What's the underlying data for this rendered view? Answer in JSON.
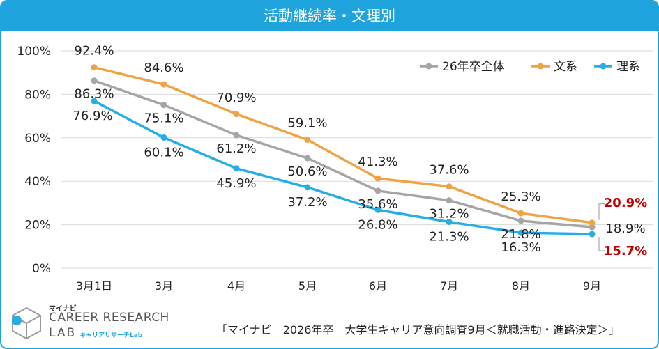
{
  "chart_data": {
    "type": "line",
    "title": "活動継続率・文理別",
    "categories": [
      "3月1日",
      "3月",
      "4月",
      "5月",
      "6月",
      "7月",
      "8月",
      "9月"
    ],
    "ylim": [
      0,
      100
    ],
    "yticks": [
      "0%",
      "20%",
      "40%",
      "60%",
      "80%",
      "100%"
    ],
    "legend_position": "top-right",
    "series": [
      {
        "name": "26年卒全体",
        "color": "#a5a5a5",
        "values": [
          86.3,
          75.1,
          61.2,
          50.6,
          35.6,
          31.2,
          21.8,
          18.9
        ],
        "labels": [
          "86.3%",
          "75.1%",
          "61.2%",
          "50.6%",
          "35.6%",
          "31.2%",
          "21.8%",
          "18.9%"
        ]
      },
      {
        "name": "文系",
        "color": "#eea444",
        "values": [
          92.4,
          84.6,
          70.9,
          59.1,
          41.3,
          37.6,
          25.3,
          20.9
        ],
        "labels": [
          "92.4%",
          "84.6%",
          "70.9%",
          "59.1%",
          "41.3%",
          "37.6%",
          "25.3%",
          "20.9%"
        ]
      },
      {
        "name": "理系",
        "color": "#27ade6",
        "values": [
          76.9,
          60.1,
          45.9,
          37.2,
          26.8,
          21.3,
          16.3,
          15.7
        ],
        "labels": [
          "76.9%",
          "60.1%",
          "45.9%",
          "37.2%",
          "26.8%",
          "21.3%",
          "16.3%",
          "15.7%"
        ]
      }
    ],
    "highlight_color": "#c00000"
  },
  "logo": {
    "small": "マイナビ",
    "main": "CAREER RESEARCH",
    "lab": "LAB",
    "sub": "キャリアリサーチLab"
  },
  "source": "「マイナビ　2026年卒　大学生キャリア意向調査9月＜就職活動・進路決定＞」"
}
